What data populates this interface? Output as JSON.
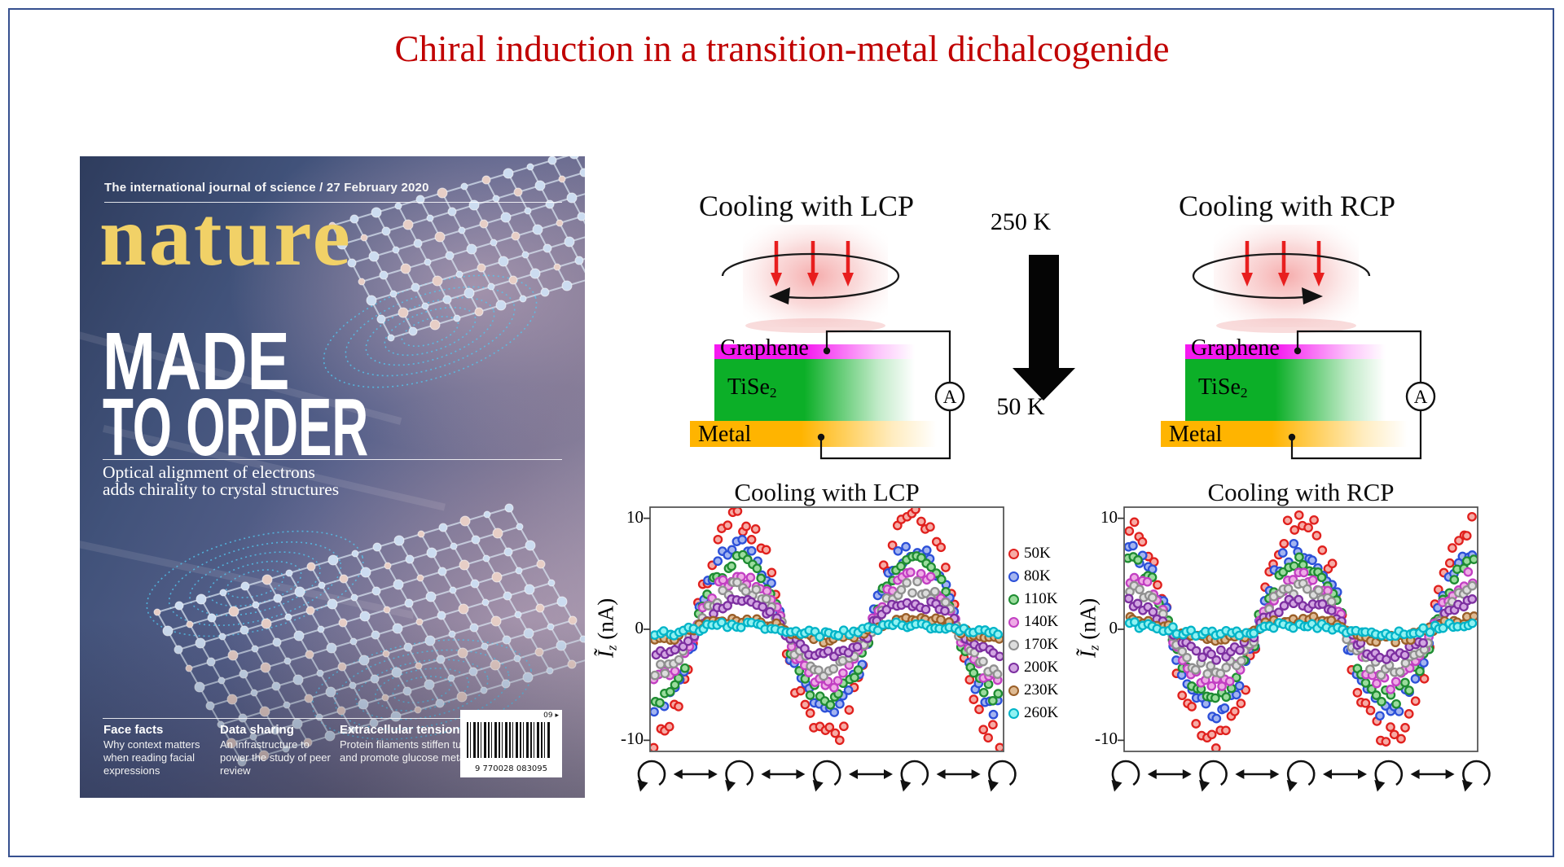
{
  "slide": {
    "title": "Chiral induction in a transition-metal dichalcogenide",
    "title_color": "#c00000",
    "border_color": "#36508f"
  },
  "cover": {
    "masthead": "The international journal of science / 27 February 2020",
    "logo": "nature",
    "logo_color": "#f1d167",
    "headline1": "MADE",
    "headline2": "TO ORDER",
    "subtitle1": "Optical alignment of electrons",
    "subtitle2": "adds chirality to crystal structures",
    "features": [
      {
        "head": "Face facts",
        "body": "Why context matters when reading facial expressions"
      },
      {
        "head": "Data sharing",
        "body": "An infrastructure to power the study of peer review"
      },
      {
        "head": "Extracellular tension",
        "body": "Protein filaments stiffen tumours and promote glucose metabolism"
      }
    ],
    "barcode_number": "9 770028 083095",
    "issue_badge": "09 ▸"
  },
  "schematics": {
    "left": {
      "title": "Cooling with LCP",
      "circular_arrow_direction": "left"
    },
    "right": {
      "title": "Cooling with RCP",
      "circular_arrow_direction": "right"
    },
    "graphene_label": "Graphene",
    "tise2_main": "TiSe",
    "tise2_sub": "2",
    "metal_label": "Metal",
    "ammeter_label": "A",
    "temp_top": "250 K",
    "temp_bottom": "50 K",
    "colors": {
      "graphene": "#f519f0",
      "tise2": "#0caf28",
      "metal": "#ffb400",
      "beam": "#ec5a5a",
      "laser_arrow": "#e81e1e",
      "wire": "#111111"
    }
  },
  "chart_data": [
    {
      "type": "scatter",
      "title": "Cooling with LCP",
      "ylabel_main": "Ĩ",
      "ylabel_sub": "z",
      "ylabel_rest": " (nA)",
      "ylim": [
        -11,
        11
      ],
      "yticks": [
        10,
        0,
        -10
      ],
      "grid": false,
      "phase": -1,
      "x_sequence": [
        "circular",
        "linear",
        "circular",
        "linear",
        "circular",
        "linear",
        "circular",
        "linear",
        "circular"
      ],
      "x_note": "photocurrent oscillates between alternating circular / linear polarization steps; first circular step gives negative extremum",
      "series": [
        {
          "name": "50K",
          "edge": "#e0201d",
          "fill": "#f6aba5",
          "amplitude": 9.8
        },
        {
          "name": "80K",
          "edge": "#2c50d8",
          "fill": "#a3b4f0",
          "amplitude": 7.3
        },
        {
          "name": "110K",
          "edge": "#1e8c32",
          "fill": "#9bdc9d",
          "amplitude": 6.2
        },
        {
          "name": "140K",
          "edge": "#c23fc2",
          "fill": "#eeaae6",
          "amplitude": 4.8
        },
        {
          "name": "170K",
          "edge": "#8f8f8f",
          "fill": "#dddddd",
          "amplitude": 3.8
        },
        {
          "name": "200K",
          "edge": "#7c2fa0",
          "fill": "#d2a5e2",
          "amplitude": 2.4
        },
        {
          "name": "230K",
          "edge": "#9a5f28",
          "fill": "#deba92",
          "amplitude": 0.9
        },
        {
          "name": "260K",
          "edge": "#00b4c8",
          "fill": "#90f2f2",
          "amplitude": 0.4
        }
      ],
      "legend_position": "right-of-plot"
    },
    {
      "type": "scatter",
      "title": "Cooling with RCP",
      "ylabel_main": "Ĩ",
      "ylabel_sub": "z",
      "ylabel_rest": " (nA)",
      "ylim": [
        -11,
        11
      ],
      "yticks": [
        10,
        0,
        -10
      ],
      "grid": false,
      "phase": 1,
      "x_sequence": [
        "circular",
        "linear",
        "circular",
        "linear",
        "circular",
        "linear",
        "circular",
        "linear",
        "circular"
      ],
      "x_note": "photocurrent oscillates between alternating circular / linear polarization steps; first circular step gives positive extremum",
      "series": [
        {
          "name": "50K",
          "edge": "#e0201d",
          "fill": "#f6aba5",
          "amplitude": 9.8
        },
        {
          "name": "80K",
          "edge": "#2c50d8",
          "fill": "#a3b4f0",
          "amplitude": 7.3
        },
        {
          "name": "110K",
          "edge": "#1e8c32",
          "fill": "#9bdc9d",
          "amplitude": 6.2
        },
        {
          "name": "140K",
          "edge": "#c23fc2",
          "fill": "#eeaae6",
          "amplitude": 4.8
        },
        {
          "name": "170K",
          "edge": "#8f8f8f",
          "fill": "#dddddd",
          "amplitude": 3.8
        },
        {
          "name": "200K",
          "edge": "#7c2fa0",
          "fill": "#d2a5e2",
          "amplitude": 2.4
        },
        {
          "name": "230K",
          "edge": "#9a5f28",
          "fill": "#deba92",
          "amplitude": 0.9
        },
        {
          "name": "260K",
          "edge": "#00b4c8",
          "fill": "#90f2f2",
          "amplitude": 0.4
        }
      ],
      "legend_position": "none"
    }
  ]
}
